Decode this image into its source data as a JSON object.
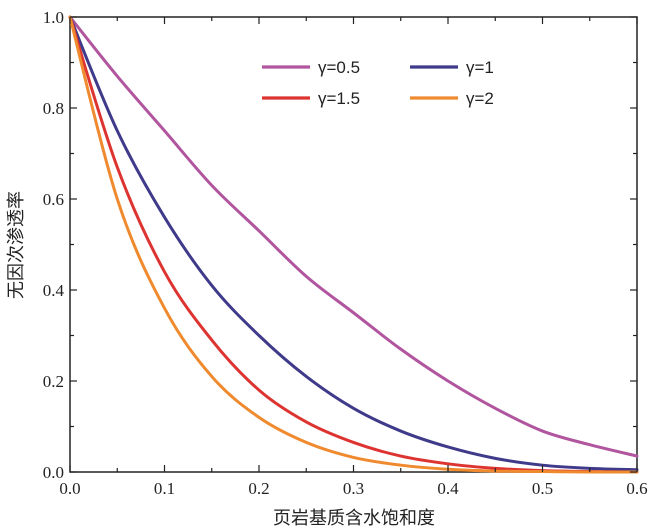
{
  "chart_data": {
    "type": "line",
    "xlabel": "页岩基质含水饱和度",
    "ylabel": "无因次渗透率",
    "xlim": [
      0.0,
      0.6
    ],
    "ylim": [
      0.0,
      1.0
    ],
    "xticks": [
      "0.0",
      "0.1",
      "0.2",
      "0.3",
      "0.4",
      "0.5",
      "0.6"
    ],
    "yticks": [
      "0.0",
      "0.2",
      "0.4",
      "0.6",
      "0.8",
      "1.0"
    ],
    "grid": false,
    "legend_position": "top-right",
    "x": [
      0.0,
      0.05,
      0.1,
      0.15,
      0.2,
      0.25,
      0.3,
      0.35,
      0.4,
      0.45,
      0.5,
      0.55,
      0.6
    ],
    "series": [
      {
        "name": "γ=0.5",
        "color": "#b0559e",
        "values": [
          1.0,
          0.87,
          0.75,
          0.63,
          0.53,
          0.43,
          0.35,
          0.27,
          0.2,
          0.14,
          0.09,
          0.06,
          0.035
        ]
      },
      {
        "name": "γ=1",
        "color": "#3f3a8a",
        "values": [
          1.0,
          0.75,
          0.56,
          0.41,
          0.3,
          0.21,
          0.14,
          0.09,
          0.055,
          0.03,
          0.015,
          0.008,
          0.005
        ]
      },
      {
        "name": "γ=1.5",
        "color": "#dd3431",
        "values": [
          1.0,
          0.67,
          0.44,
          0.29,
          0.18,
          0.11,
          0.065,
          0.035,
          0.018,
          0.008,
          0.003,
          0.001,
          0.0
        ]
      },
      {
        "name": "γ=2",
        "color": "#ef8a2e",
        "values": [
          1.0,
          0.6,
          0.36,
          0.21,
          0.12,
          0.065,
          0.032,
          0.015,
          0.006,
          0.002,
          0.001,
          0.0,
          0.0
        ]
      }
    ]
  }
}
